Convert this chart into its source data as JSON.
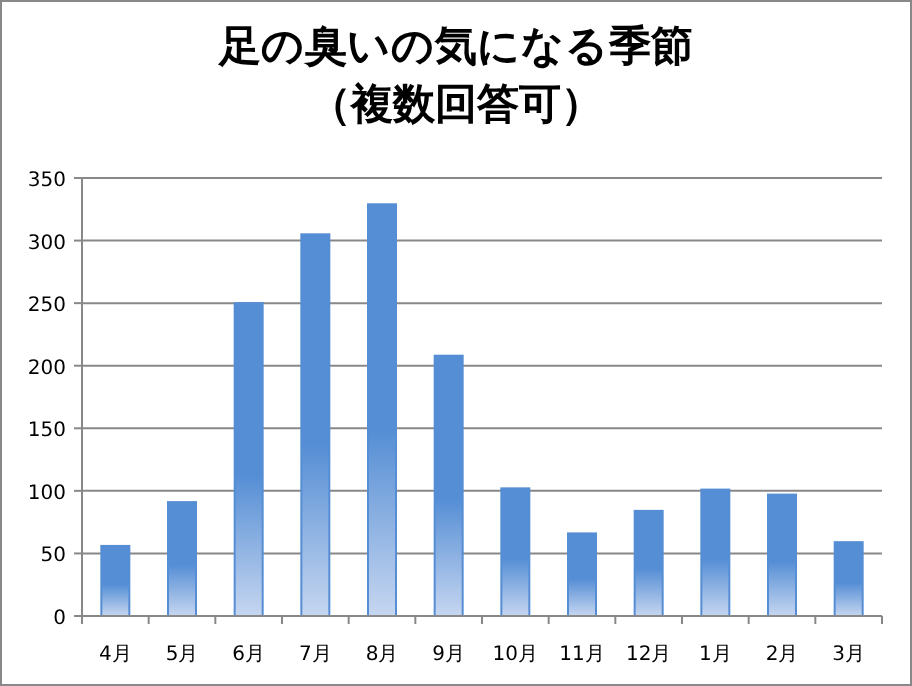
{
  "chart_data": {
    "type": "bar",
    "title": "足の臭いの気になる季節",
    "subtitle": "（複数回答可）",
    "categories": [
      "4月",
      "5月",
      "6月",
      "7月",
      "8月",
      "9月",
      "10月",
      "11月",
      "12月",
      "1月",
      "2月",
      "3月"
    ],
    "values": [
      56,
      91,
      250,
      305,
      329,
      208,
      102,
      66,
      84,
      101,
      97,
      59
    ],
    "color": "#558ed5",
    "ylim": [
      0,
      350
    ],
    "yticks": [
      0,
      50,
      100,
      150,
      200,
      250,
      300,
      350
    ],
    "grid": "y"
  }
}
